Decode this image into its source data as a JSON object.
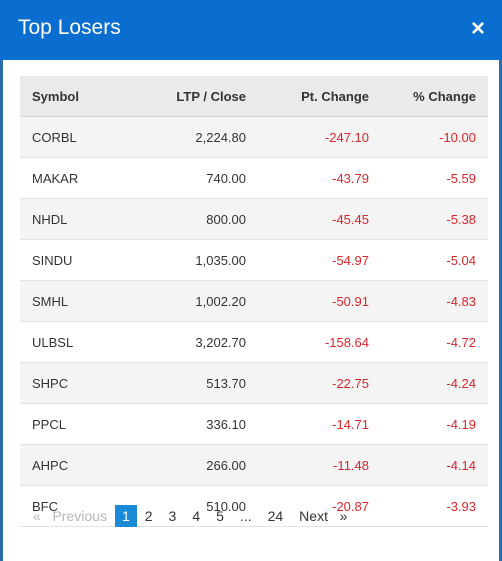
{
  "modal": {
    "title": "Top Losers",
    "close_symbol": "×"
  },
  "table": {
    "headers": [
      "Symbol",
      "LTP / Close",
      "Pt. Change",
      "% Change"
    ],
    "rows": [
      {
        "symbol": "CORBL",
        "ltp": "2,224.80",
        "pt_change": "-247.10",
        "pct_change": "-10.00"
      },
      {
        "symbol": "MAKAR",
        "ltp": "740.00",
        "pt_change": "-43.79",
        "pct_change": "-5.59"
      },
      {
        "symbol": "NHDL",
        "ltp": "800.00",
        "pt_change": "-45.45",
        "pct_change": "-5.38"
      },
      {
        "symbol": "SINDU",
        "ltp": "1,035.00",
        "pt_change": "-54.97",
        "pct_change": "-5.04"
      },
      {
        "symbol": "SMHL",
        "ltp": "1,002.20",
        "pt_change": "-50.91",
        "pct_change": "-4.83"
      },
      {
        "symbol": "ULBSL",
        "ltp": "3,202.70",
        "pt_change": "-158.64",
        "pct_change": "-4.72"
      },
      {
        "symbol": "SHPC",
        "ltp": "513.70",
        "pt_change": "-22.75",
        "pct_change": "-4.24"
      },
      {
        "symbol": "PPCL",
        "ltp": "336.10",
        "pt_change": "-14.71",
        "pct_change": "-4.19"
      },
      {
        "symbol": "AHPC",
        "ltp": "266.00",
        "pt_change": "-11.48",
        "pct_change": "-4.14"
      },
      {
        "symbol": "BFC",
        "ltp": "510.00",
        "pt_change": "-20.87",
        "pct_change": "-3.93"
      }
    ]
  },
  "pagination": {
    "prev_arrow": "«",
    "prev_label": "Previous",
    "pages": [
      "1",
      "2",
      "3",
      "4",
      "5"
    ],
    "ellipsis": "...",
    "last_page": "24",
    "next_label": "Next",
    "next_arrow": "»",
    "current": "1"
  },
  "colors": {
    "header_bg": "#0a6ed0",
    "negative": "#d9262b",
    "active_page": "#1a8ad8"
  }
}
